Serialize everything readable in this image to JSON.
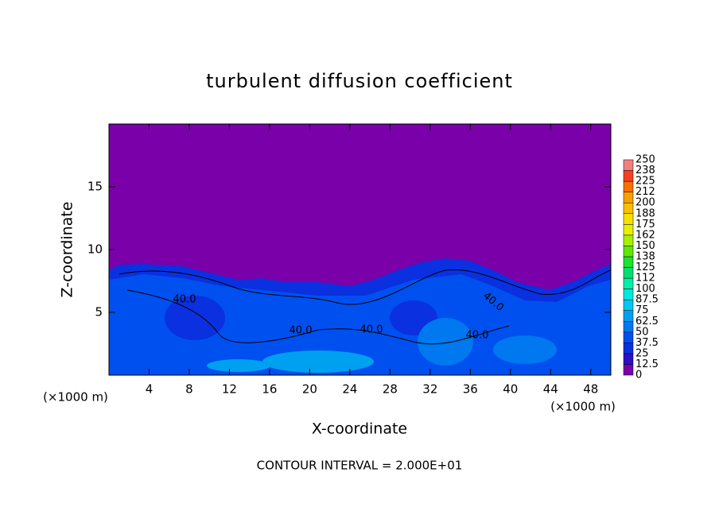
{
  "chart_data": {
    "type": "contour",
    "title": "turbulent diffusion coefficient",
    "xlabel": "X-coordinate",
    "ylabel": "Z-coordinate",
    "x_unit": "(×1000 m)",
    "y_unit": "(×1000 m)",
    "footer": "CONTOUR INTERVAL = 2.000E+01",
    "contour_labels": [
      "40.0",
      "40.0",
      "40.0",
      "40.0",
      "40.0"
    ],
    "xlim": [
      0,
      50
    ],
    "ylim": [
      0,
      20
    ],
    "xticks": [
      4,
      8,
      12,
      16,
      20,
      24,
      28,
      32,
      36,
      40,
      44,
      48
    ],
    "yticks": [
      5,
      10,
      15
    ],
    "colorbar": {
      "levels": [
        0,
        12.5,
        25,
        37.5,
        50,
        62.5,
        75,
        87.5,
        100,
        112,
        125,
        138,
        150,
        162,
        175,
        188,
        200,
        212,
        225,
        238,
        250
      ],
      "colors": [
        "#7a00aa",
        "#2a10c8",
        "#0a30e0",
        "#0050f0",
        "#0078f0",
        "#00a0f0",
        "#00c8f0",
        "#00e8e0",
        "#00f0a8",
        "#00e070",
        "#20e030",
        "#60e800",
        "#a8f000",
        "#e8f000",
        "#f8e000",
        "#f8c000",
        "#f8a000",
        "#f87000",
        "#f84020",
        "#f08080"
      ]
    }
  }
}
